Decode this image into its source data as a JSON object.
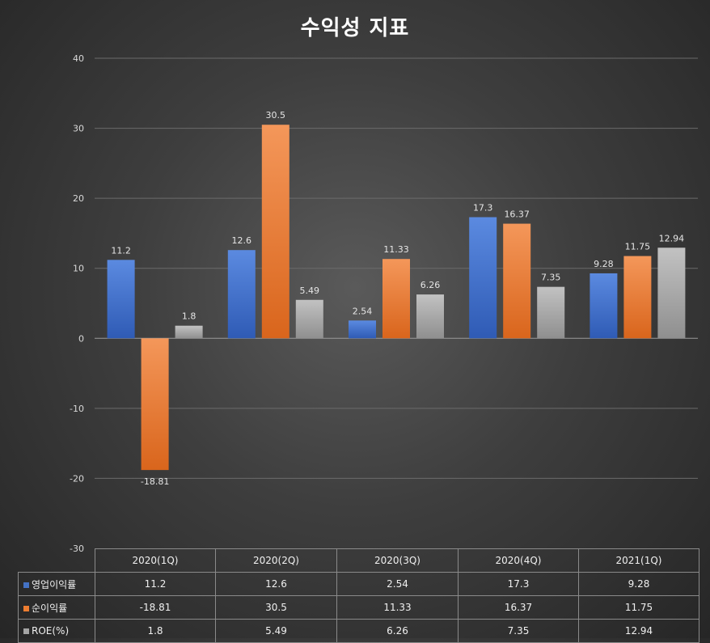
{
  "chart_data": {
    "type": "bar",
    "title": "수익성 지표",
    "categories": [
      "2020(1Q)",
      "2020(2Q)",
      "2020(3Q)",
      "2020(4Q)",
      "2021(1Q)"
    ],
    "series": [
      {
        "name": "영업이익률",
        "color": "#4472c4",
        "values": [
          11.2,
          12.6,
          2.54,
          17.3,
          9.28
        ],
        "labels": [
          "11.2",
          "12.6",
          "2.54",
          "17.3",
          "9.28"
        ]
      },
      {
        "name": "순이익률",
        "color": "#ed7d31",
        "values": [
          -18.81,
          30.5,
          11.33,
          16.37,
          11.75
        ],
        "labels": [
          "-18.81",
          "30.5",
          "11.33",
          "16.37",
          "11.75"
        ]
      },
      {
        "name": "ROE(%)",
        "color": "#a5a5a5",
        "values": [
          1.8,
          5.49,
          6.26,
          7.35,
          12.94
        ],
        "labels": [
          "1.8",
          "5.49",
          "6.26",
          "7.35",
          "12.94"
        ]
      }
    ],
    "ylim": [
      -30,
      40
    ],
    "yticks": [
      "40",
      "30",
      "20",
      "10",
      "0",
      "-10",
      "-20",
      "-30"
    ],
    "grid": true,
    "legend": "data-table"
  }
}
